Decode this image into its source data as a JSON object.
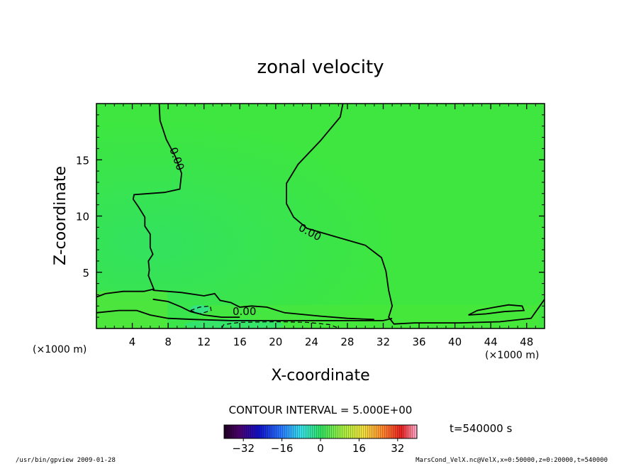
{
  "chart_data": {
    "type": "heatmap",
    "title": "zonal velocity",
    "xlabel": "X-coordinate",
    "ylabel": "Z-coordinate",
    "x_unit": "(×1000 m)",
    "z_unit": "(×1000 m)",
    "xlim": [
      0,
      50
    ],
    "ylim": [
      0,
      20
    ],
    "x_ticks": [
      4,
      8,
      12,
      16,
      20,
      24,
      28,
      32,
      36,
      40,
      44,
      48
    ],
    "y_ticks": [
      5,
      10,
      15
    ],
    "contour_label": "0.00",
    "contour_interval_text": "CONTOUR INTERVAL = 5.000E+00",
    "time_text": "t=540000 s",
    "colorbar": {
      "min": -40,
      "max": 40,
      "ticks": [
        -32,
        -16,
        0,
        16,
        32
      ]
    },
    "contours": [
      {
        "value": 0,
        "dashed": false,
        "points": [
          [
            7.0,
            20
          ],
          [
            7.1,
            18.5
          ],
          [
            7.8,
            16.8
          ],
          [
            8.8,
            15.3
          ],
          [
            9.5,
            13.8
          ],
          [
            9.3,
            12.4
          ],
          [
            7.6,
            12.1
          ],
          [
            4.2,
            11.9
          ],
          [
            4.1,
            11.5
          ],
          [
            4.7,
            10.8
          ],
          [
            5.4,
            9.9
          ],
          [
            5.4,
            9.1
          ],
          [
            6.0,
            8.4
          ],
          [
            6.0,
            7.2
          ],
          [
            6.3,
            6.6
          ],
          [
            5.8,
            6.0
          ],
          [
            5.9,
            5.2
          ],
          [
            5.8,
            4.7
          ],
          [
            6.4,
            3.5
          ],
          [
            5.3,
            3.3
          ],
          [
            3.0,
            3.3
          ],
          [
            1.0,
            3.1
          ],
          [
            0,
            2.8
          ]
        ]
      },
      {
        "value": 0,
        "dashed": false,
        "points": [
          [
            27.5,
            20
          ],
          [
            27.2,
            18.8
          ],
          [
            25.0,
            16.7
          ],
          [
            22.5,
            14.6
          ],
          [
            21.2,
            12.9
          ],
          [
            21.2,
            11.1
          ],
          [
            22.0,
            9.9
          ],
          [
            23.5,
            8.9
          ],
          [
            26.5,
            8.2
          ],
          [
            30.0,
            7.4
          ],
          [
            31.8,
            6.3
          ],
          [
            32.3,
            5.1
          ],
          [
            32.6,
            3.4
          ],
          [
            33.0,
            2.0
          ],
          [
            32.6,
            1.0
          ],
          [
            33.2,
            0.4
          ],
          [
            35.5,
            0.5
          ],
          [
            40.5,
            0.5
          ],
          [
            45.0,
            0.6
          ],
          [
            48.5,
            0.9
          ],
          [
            50,
            2.6
          ]
        ]
      },
      {
        "value": 0,
        "dashed": false,
        "points": [
          [
            0,
            1.4
          ],
          [
            2.5,
            1.6
          ],
          [
            4.5,
            1.6
          ],
          [
            6.0,
            1.2
          ],
          [
            8.0,
            0.9
          ],
          [
            11.0,
            0.8
          ],
          [
            15.0,
            0.7
          ],
          [
            20.0,
            0.7
          ],
          [
            25.0,
            0.7
          ],
          [
            28.0,
            0.7
          ],
          [
            32.0,
            0.7
          ],
          [
            33.0,
            0.9
          ]
        ]
      },
      {
        "value": 0,
        "dashed": false,
        "points": [
          [
            6.3,
            3.4
          ],
          [
            9.5,
            3.2
          ],
          [
            12.0,
            2.9
          ],
          [
            13.2,
            3.1
          ],
          [
            13.8,
            2.5
          ],
          [
            15.0,
            2.3
          ],
          [
            16.0,
            1.9
          ],
          [
            17.3,
            2.0
          ],
          [
            19.0,
            1.9
          ],
          [
            21.0,
            1.4
          ],
          [
            25.0,
            1.1
          ],
          [
            28.0,
            0.9
          ],
          [
            31.0,
            0.8
          ]
        ]
      },
      {
        "value": 0,
        "dashed": false,
        "points": [
          [
            6.3,
            2.6
          ],
          [
            8.0,
            2.4
          ],
          [
            9.5,
            1.9
          ],
          [
            10.5,
            1.5
          ],
          [
            11.0,
            1.4
          ],
          [
            12.0,
            1.2
          ],
          [
            14.0,
            1.0
          ],
          [
            16.0,
            1.0
          ]
        ]
      },
      {
        "value": 0,
        "dashed": false,
        "points": [
          [
            41.5,
            1.2
          ],
          [
            42.5,
            1.6
          ],
          [
            44.5,
            1.9
          ],
          [
            46.0,
            2.1
          ],
          [
            47.5,
            2.0
          ],
          [
            47.7,
            1.6
          ],
          [
            45.5,
            1.5
          ],
          [
            43.5,
            1.3
          ],
          [
            41.5,
            1.2
          ]
        ]
      },
      {
        "value": -5,
        "dashed": true,
        "points": [
          [
            10.5,
            1.6
          ],
          [
            11.5,
            1.9
          ],
          [
            12.7,
            2.0
          ],
          [
            12.8,
            1.6
          ],
          [
            11.5,
            1.3
          ],
          [
            10.5,
            1.6
          ]
        ]
      },
      {
        "value": -5,
        "dashed": true,
        "points": [
          [
            14.0,
            0.05
          ],
          [
            14.2,
            0.35
          ],
          [
            16.0,
            0.55
          ],
          [
            20.0,
            0.6
          ],
          [
            23.5,
            0.55
          ],
          [
            26.0,
            0.35
          ],
          [
            27.0,
            0.05
          ]
        ]
      }
    ]
  },
  "footer": {
    "left": "/usr/bin/gpview   2009-01-28",
    "right": "MarsCond_VelX.nc@VelX,x=0:50000,z=0:20000,t=540000"
  }
}
